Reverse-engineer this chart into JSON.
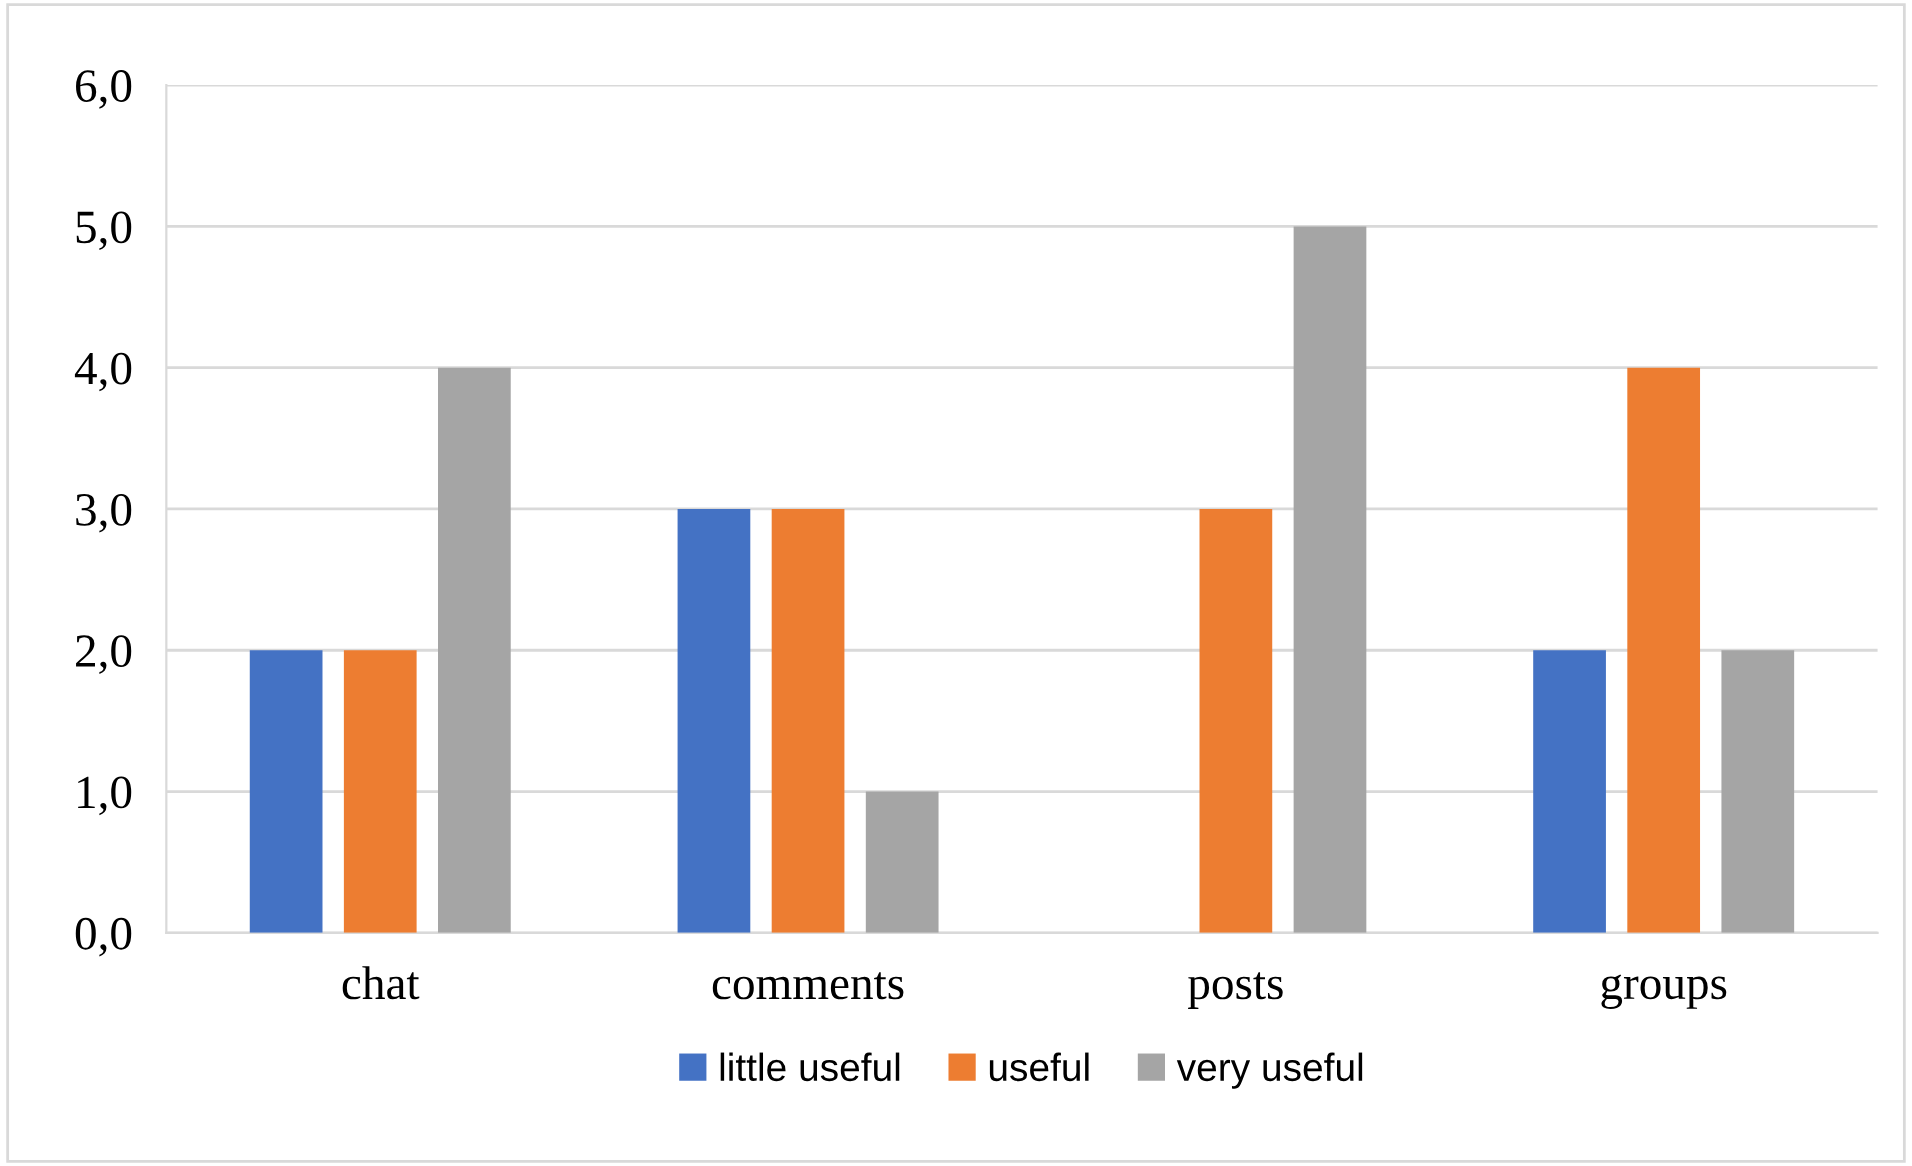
{
  "chart_data": {
    "type": "bar",
    "categories": [
      "chat",
      "comments",
      "posts",
      "groups"
    ],
    "series": [
      {
        "name": "little useful",
        "color": "#4472c4",
        "values": [
          2,
          3,
          0,
          2
        ]
      },
      {
        "name": "useful",
        "color": "#ed7d31",
        "values": [
          2,
          3,
          3,
          4
        ]
      },
      {
        "name": "very useful",
        "color": "#a5a5a5",
        "values": [
          4,
          1,
          5,
          2
        ]
      }
    ],
    "ylim": [
      0,
      6
    ],
    "yticks": [
      {
        "value": 0,
        "label": "0,0"
      },
      {
        "value": 1,
        "label": "1,0"
      },
      {
        "value": 2,
        "label": "2,0"
      },
      {
        "value": 3,
        "label": "3,0"
      },
      {
        "value": 4,
        "label": "4,0"
      },
      {
        "value": 5,
        "label": "5,0"
      },
      {
        "value": 6,
        "label": "6,0"
      }
    ],
    "grid": "y",
    "legend": "bottom"
  }
}
